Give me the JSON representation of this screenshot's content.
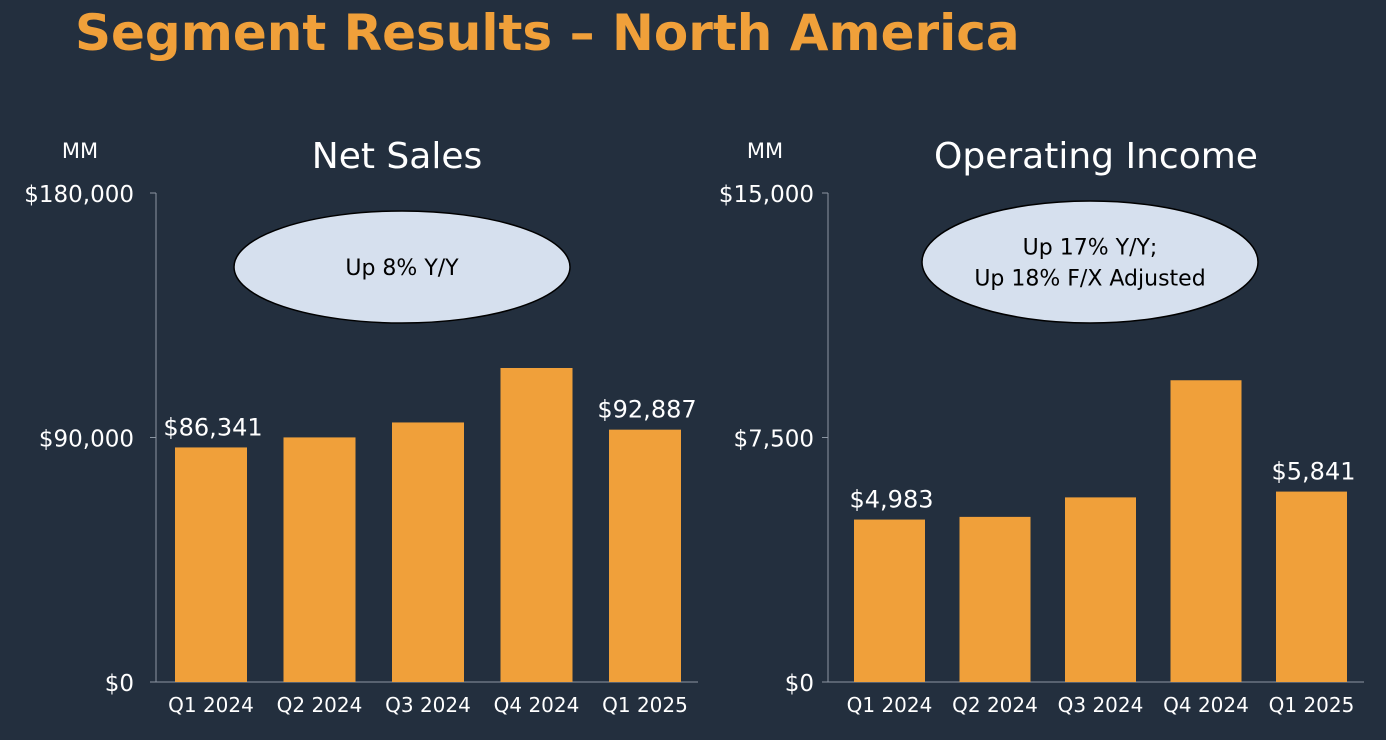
{
  "page": {
    "title": "Segment Results – North America"
  },
  "colors": {
    "background": "#232f3e",
    "title": "#f0a03a",
    "bar": "#f0a03a",
    "text": "#ffffff",
    "axis": "#8c96a3",
    "bubble_fill": "#d6e0ee",
    "bubble_stroke": "#000000",
    "bubble_text": "#000000"
  },
  "chart_data": [
    {
      "type": "bar",
      "title": "Net Sales",
      "unit_label": "MM",
      "categories": [
        "Q1 2024",
        "Q2 2024",
        "Q3 2024",
        "Q4 2024",
        "Q1 2025"
      ],
      "values": [
        86341,
        90033,
        95537,
        115586,
        92887
      ],
      "ylim": [
        0,
        180000
      ],
      "yticks": [
        0,
        90000,
        180000
      ],
      "ytick_labels": [
        "$0",
        "$90,000",
        "$180,000"
      ],
      "data_labels": [
        {
          "index": 0,
          "text": "$86,341"
        },
        {
          "index": 4,
          "text": "$92,887"
        }
      ],
      "callout": [
        "Up 8% Y/Y"
      ],
      "grid": false,
      "legend": "none"
    },
    {
      "type": "bar",
      "title": "Operating Income",
      "unit_label": "MM",
      "categories": [
        "Q1 2024",
        "Q2 2024",
        "Q3 2024",
        "Q4 2024",
        "Q1 2025"
      ],
      "values": [
        4983,
        5065,
        5663,
        9256,
        5841
      ],
      "ylim": [
        0,
        15000
      ],
      "yticks": [
        0,
        7500,
        15000
      ],
      "ytick_labels": [
        "$0",
        "$7,500",
        "$15,000"
      ],
      "data_labels": [
        {
          "index": 0,
          "text": "$4,983"
        },
        {
          "index": 4,
          "text": "$5,841"
        }
      ],
      "callout": [
        "Up 17% Y/Y;",
        "Up 18% F/X Adjusted"
      ],
      "grid": false,
      "legend": "none"
    }
  ]
}
